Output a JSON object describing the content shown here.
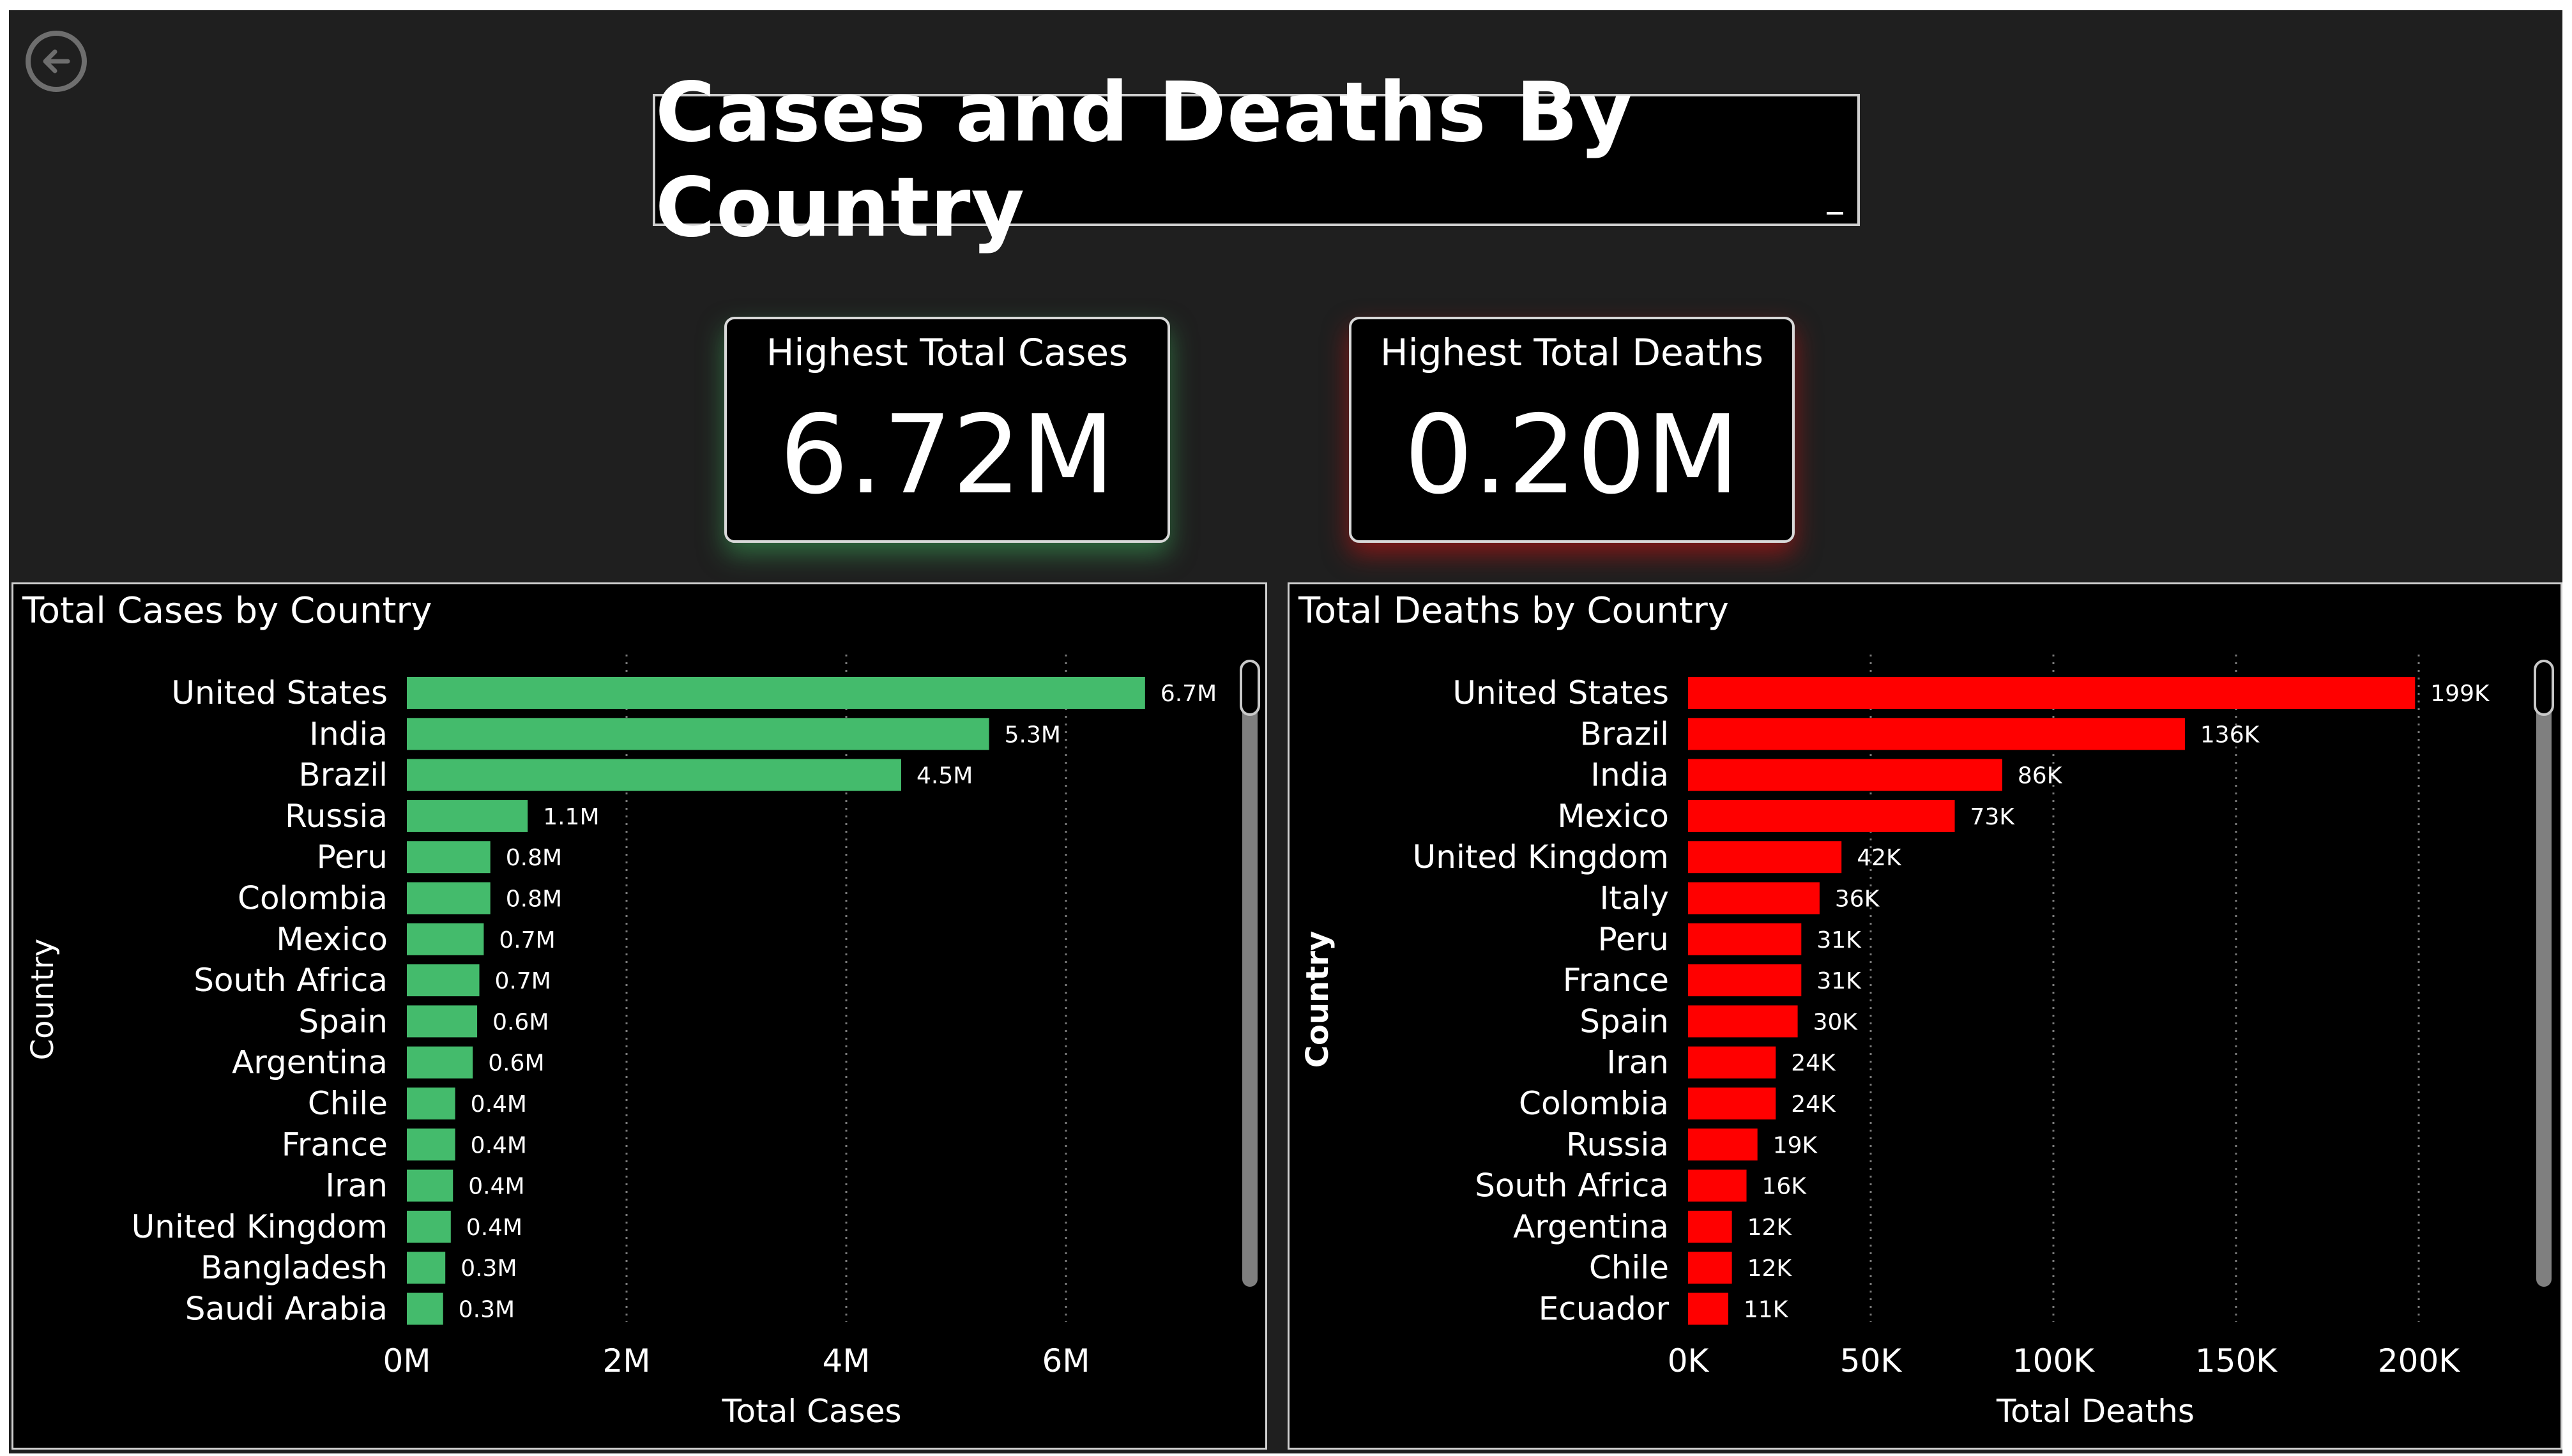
{
  "page": {
    "title": "Cases and Deaths By Country",
    "back_icon": "back-arrow-icon"
  },
  "kpis": [
    {
      "label": "Highest Total Cases",
      "value": "6.72M",
      "accent": "#3cb371"
    },
    {
      "label": "Highest Total Deaths",
      "value": "0.20M",
      "accent": "#e00000"
    }
  ],
  "chart_data": [
    {
      "type": "bar",
      "orientation": "horizontal",
      "title": "Total Cases by Country",
      "xlabel": "Total Cases",
      "ylabel": "Country",
      "bar_color": "#44bb6c",
      "xlim": [
        0,
        7000000
      ],
      "x_ticks": [
        0,
        2000000,
        4000000,
        6000000
      ],
      "x_tick_labels": [
        "0M",
        "2M",
        "4M",
        "6M"
      ],
      "grid": "vertical-dotted",
      "categories": [
        "United States",
        "India",
        "Brazil",
        "Russia",
        "Peru",
        "Colombia",
        "Mexico",
        "South Africa",
        "Spain",
        "Argentina",
        "Chile",
        "France",
        "Iran",
        "United Kingdom",
        "Bangladesh",
        "Saudi Arabia"
      ],
      "values": [
        6720000,
        5300000,
        4500000,
        1100000,
        760000,
        760000,
        700000,
        660000,
        640000,
        600000,
        440000,
        440000,
        420000,
        400000,
        350000,
        330000
      ],
      "data_labels": [
        "6.7M",
        "5.3M",
        "4.5M",
        "1.1M",
        "0.8M",
        "0.8M",
        "0.7M",
        "0.7M",
        "0.6M",
        "0.6M",
        "0.4M",
        "0.4M",
        "0.4M",
        "0.4M",
        "0.3M",
        "0.3M"
      ]
    },
    {
      "type": "bar",
      "orientation": "horizontal",
      "title": "Total Deaths by Country",
      "xlabel": "Total Deaths",
      "ylabel": "Country",
      "bar_color": "#ff0000",
      "xlim": [
        0,
        225000
      ],
      "x_ticks": [
        0,
        50000,
        100000,
        150000,
        200000
      ],
      "x_tick_labels": [
        "0K",
        "50K",
        "100K",
        "150K",
        "200K"
      ],
      "grid": "vertical-dotted",
      "categories": [
        "United States",
        "Brazil",
        "India",
        "Mexico",
        "United Kingdom",
        "Italy",
        "Peru",
        "France",
        "Spain",
        "Iran",
        "Colombia",
        "Russia",
        "South Africa",
        "Argentina",
        "Chile",
        "Ecuador"
      ],
      "values": [
        199000,
        136000,
        86000,
        73000,
        42000,
        36000,
        31000,
        31000,
        30000,
        24000,
        24000,
        19000,
        16000,
        12000,
        12000,
        11000
      ],
      "data_labels": [
        "199K",
        "136K",
        "86K",
        "73K",
        "42K",
        "36K",
        "31K",
        "31K",
        "30K",
        "24K",
        "24K",
        "19K",
        "16K",
        "12K",
        "12K",
        "11K"
      ]
    }
  ]
}
